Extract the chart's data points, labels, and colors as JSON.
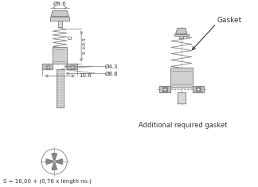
{
  "bg_color": "#ffffff",
  "line_color": "#808080",
  "dim_color": "#808080",
  "text_color": "#333333",
  "dim_phi96": "Ø9.6",
  "dim_s05": "S ±0.5",
  "dim_phi43": "Ø4.3",
  "dim_phi88": "Ø8.8",
  "dim_106": "10.6",
  "formula": "S = 16,00 + (0,76 x length no.)",
  "gasket_label": "Gasket",
  "additional_label": "Additional required gasket"
}
